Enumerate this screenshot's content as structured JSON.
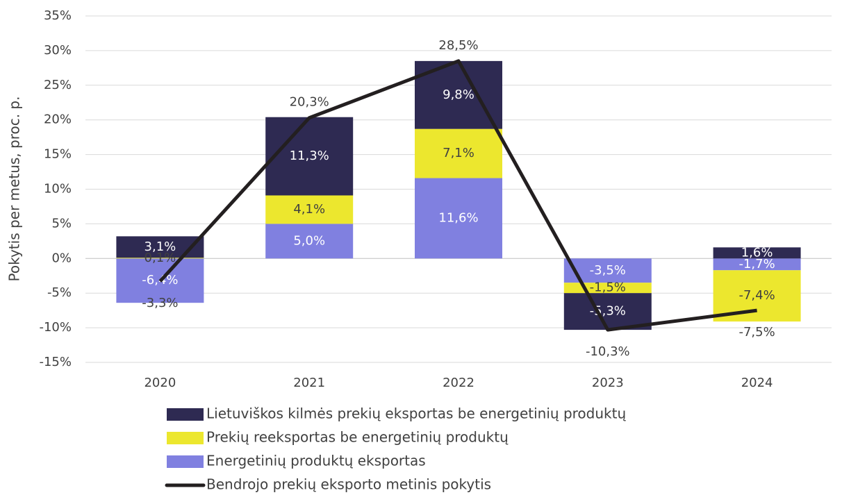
{
  "chart_data": {
    "type": "stacked_bar_line",
    "y_axis_label": "Pokytis per metus, proc. p.",
    "categories": [
      "2020",
      "2021",
      "2022",
      "2023",
      "2024"
    ],
    "ylim": [
      -15,
      35
    ],
    "yticks": [
      {
        "value": -15,
        "label": "-15%"
      },
      {
        "value": -10,
        "label": "-10%"
      },
      {
        "value": -5,
        "label": "-5%"
      },
      {
        "value": 0,
        "label": "0%"
      },
      {
        "value": 5,
        "label": "5%"
      },
      {
        "value": 10,
        "label": "10%"
      },
      {
        "value": 15,
        "label": "15%"
      },
      {
        "value": 20,
        "label": "20%"
      },
      {
        "value": 25,
        "label": "25%"
      },
      {
        "value": 30,
        "label": "30%"
      },
      {
        "value": 35,
        "label": "35%"
      }
    ],
    "grid": true,
    "series": [
      {
        "name": "Energetinių produktų eksportas",
        "color": "#8080e0",
        "values": [
          -6.4,
          5.0,
          11.6,
          -3.5,
          -1.7
        ],
        "value_labels": [
          "-6,4%",
          "5,0%",
          "11,6%",
          "-3,5%",
          "-1,7%"
        ]
      },
      {
        "name": "Prekių reeksportas be energetinių produktų",
        "color": "#ece72e",
        "values": [
          0.1,
          4.1,
          7.1,
          -1.5,
          -7.4
        ],
        "value_labels": [
          "0,1%",
          "4,1%",
          "7,1%",
          "-1,5%",
          "-7,4%"
        ]
      },
      {
        "name": "Lietuviškos kilmės prekių eksportas be energetinių produktų",
        "color": "#2e2a52",
        "values": [
          3.1,
          11.3,
          9.8,
          -5.3,
          1.6
        ],
        "value_labels": [
          "3,1%",
          "11,3%",
          "9,8%",
          "-5,3%",
          "1,6%"
        ]
      }
    ],
    "line": {
      "name": "Bendrojo prekių eksporto metinis pokytis",
      "color": "#231f20",
      "values": [
        -3.3,
        20.3,
        28.5,
        -10.3,
        -7.5
      ],
      "value_labels": [
        "-3,3%",
        "20,3%",
        "28,5%",
        "-10,3%",
        "-7,5%"
      ]
    }
  }
}
